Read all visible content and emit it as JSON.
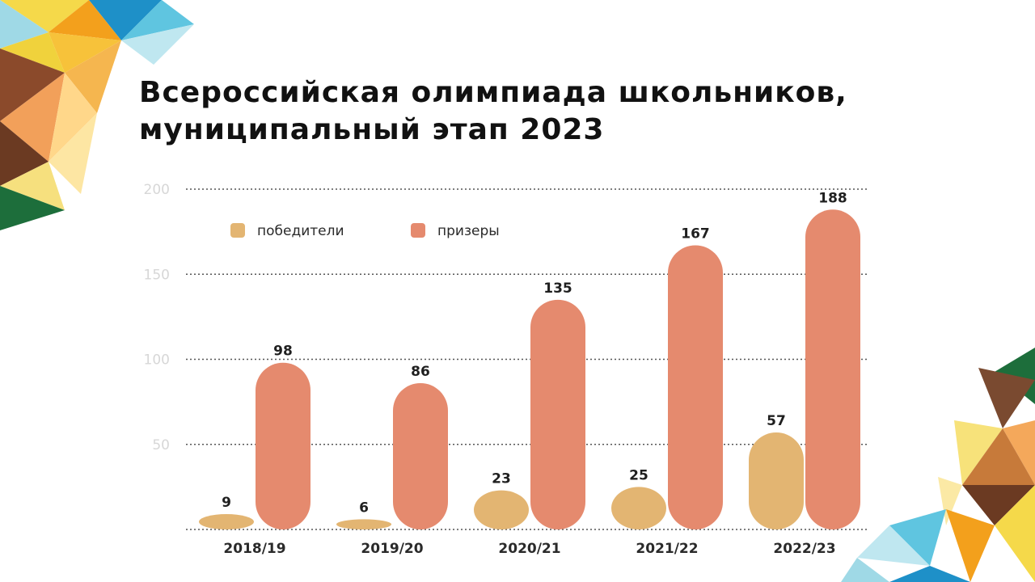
{
  "title": {
    "line1": "Всероссийская олимпиада школьников,",
    "line2": "муниципальный этап 2023"
  },
  "colors": {
    "winners": "#e3b572",
    "prizewinners": "#e58a6e",
    "grid": "#555555",
    "tick_text": "#d7d7d7"
  },
  "chart_data": {
    "type": "bar",
    "categories": [
      "2018/19",
      "2019/20",
      "2020/21",
      "2021/22",
      "2022/23"
    ],
    "series": [
      {
        "name": "победители",
        "values": [
          9,
          6,
          23,
          25,
          57
        ]
      },
      {
        "name": "призеры",
        "values": [
          98,
          86,
          135,
          167,
          188
        ]
      }
    ],
    "yticks": [
      50,
      100,
      150,
      200
    ],
    "ylim": [
      0,
      200
    ],
    "grid": true,
    "legend": "top-left",
    "title": "Всероссийская олимпиада школьников, муниципальный этап 2023",
    "xlabel": "",
    "ylabel": ""
  }
}
